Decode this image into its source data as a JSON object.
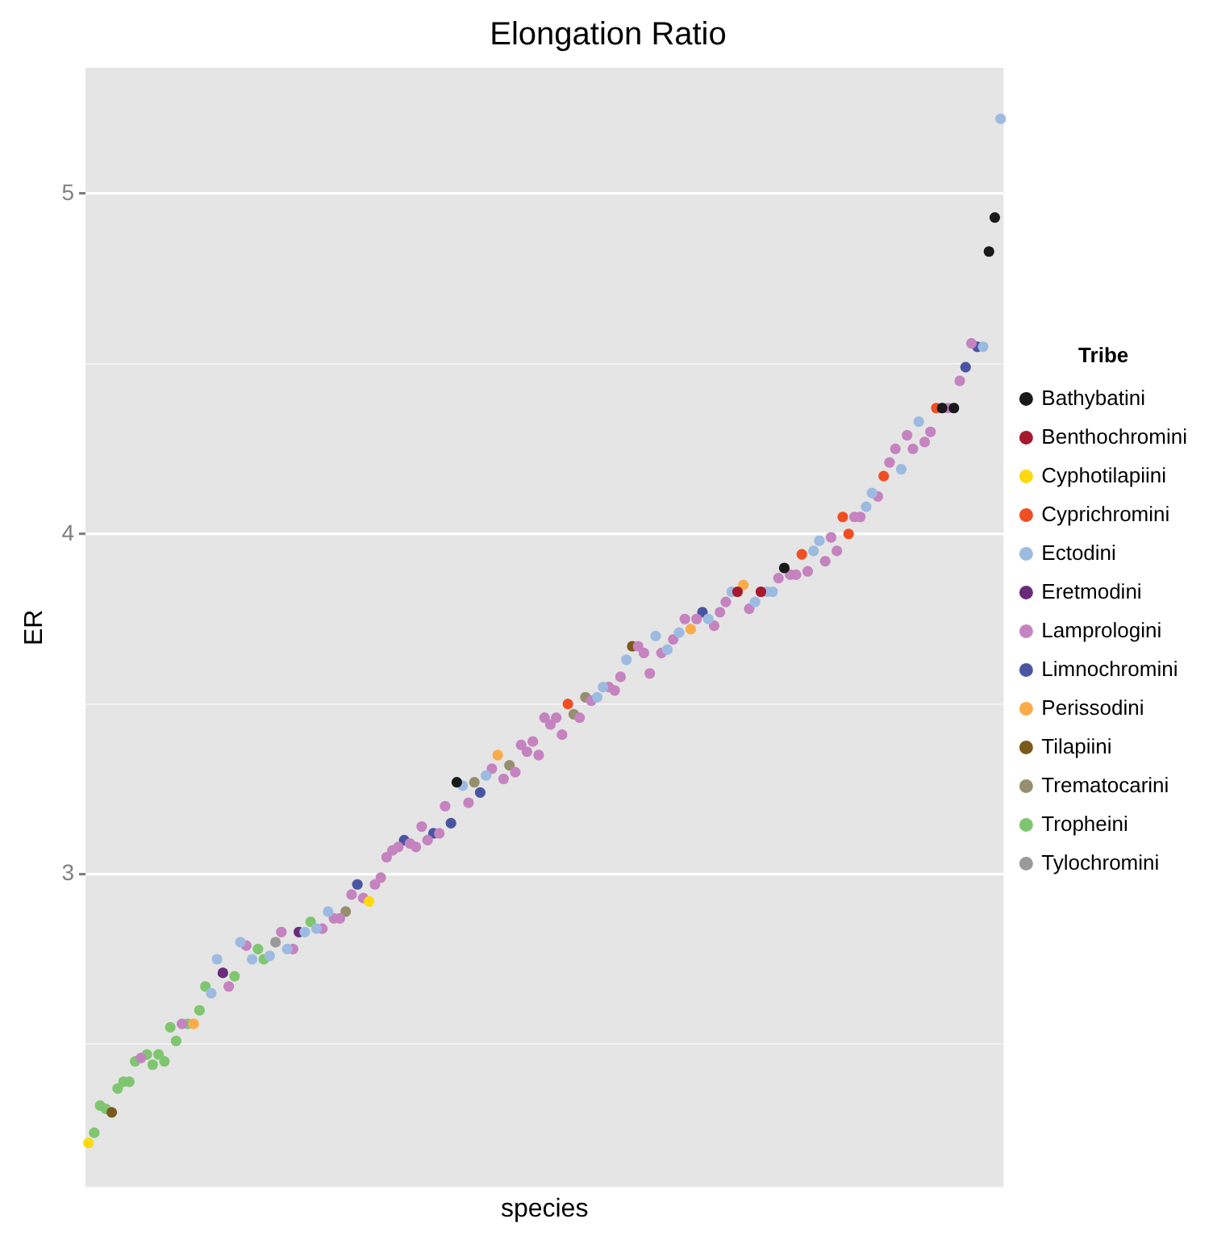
{
  "chart_data": {
    "type": "scatter",
    "title": "Elongation Ratio",
    "xlabel": "species",
    "ylabel": "ER",
    "legend_title": "Tribe",
    "legend": "right",
    "grid": true,
    "marker": "circle",
    "tick_labels": "y",
    "ylim": [
      2.08,
      5.37
    ],
    "yticks": [
      {
        "value": 2.5,
        "label": null
      },
      3,
      {
        "value": 3.5,
        "label": null
      },
      4,
      {
        "value": 4.5,
        "label": null
      },
      5
    ],
    "categories": [
      null,
      null,
      null,
      null,
      null,
      null,
      null,
      null,
      null,
      null,
      null,
      null,
      null,
      null,
      null,
      null,
      null,
      null,
      null,
      null,
      null,
      null,
      null,
      null,
      null,
      null,
      null,
      null,
      null,
      null,
      null,
      null,
      null,
      null,
      null,
      null,
      null,
      null,
      null,
      null,
      null,
      null,
      null,
      null,
      null,
      null,
      null,
      null,
      null,
      null,
      null,
      null,
      null,
      null,
      null,
      null,
      null,
      null,
      null,
      null,
      null,
      null,
      null,
      null,
      null,
      null,
      null,
      null,
      null,
      null,
      null,
      null,
      null,
      null,
      null,
      null,
      null,
      null,
      null,
      null,
      null,
      null,
      null,
      null,
      null,
      null,
      null,
      null,
      null,
      null,
      null,
      null,
      null,
      null,
      null,
      null,
      null,
      null,
      null,
      null,
      null,
      null,
      null,
      null,
      null,
      null,
      null,
      null,
      null,
      null,
      null,
      null,
      null,
      null,
      null,
      null,
      null,
      null,
      null,
      null,
      null,
      null,
      null,
      null,
      null,
      null,
      null,
      null,
      null,
      null,
      null,
      null,
      null,
      null,
      null,
      null,
      null,
      null,
      null,
      null,
      null,
      null,
      null,
      null,
      null,
      null,
      null,
      null,
      null,
      null,
      null,
      null,
      null,
      null,
      null,
      null,
      null
    ],
    "series": [
      {
        "name": "Bathybatini",
        "color": "#1a1a1a",
        "values": [
          null,
          null,
          null,
          null,
          null,
          null,
          null,
          null,
          null,
          null,
          null,
          null,
          null,
          null,
          null,
          null,
          null,
          null,
          null,
          null,
          null,
          null,
          null,
          null,
          null,
          null,
          null,
          null,
          null,
          null,
          null,
          null,
          null,
          null,
          null,
          null,
          null,
          null,
          null,
          null,
          null,
          null,
          null,
          null,
          null,
          null,
          null,
          null,
          null,
          null,
          null,
          null,
          null,
          null,
          null,
          null,
          null,
          null,
          null,
          null,
          null,
          null,
          null,
          3.27,
          null,
          null,
          null,
          null,
          null,
          null,
          null,
          null,
          null,
          null,
          null,
          null,
          null,
          null,
          null,
          null,
          null,
          null,
          null,
          null,
          null,
          null,
          null,
          null,
          null,
          null,
          null,
          null,
          null,
          null,
          null,
          null,
          null,
          null,
          null,
          null,
          null,
          null,
          null,
          null,
          null,
          null,
          null,
          null,
          null,
          null,
          null,
          null,
          null,
          null,
          null,
          null,
          null,
          null,
          null,
          3.9,
          null,
          null,
          null,
          null,
          null,
          null,
          null,
          null,
          null,
          null,
          null,
          null,
          null,
          null,
          null,
          null,
          null,
          null,
          null,
          null,
          null,
          null,
          null,
          null,
          null,
          null,
          4.37,
          null,
          4.37,
          null,
          null,
          null,
          null,
          null,
          4.83,
          4.93,
          null
        ]
      },
      {
        "name": "Benthochromini",
        "color": "#a6192e",
        "values": [
          null,
          null,
          null,
          null,
          null,
          null,
          null,
          null,
          null,
          null,
          null,
          null,
          null,
          null,
          null,
          null,
          null,
          null,
          null,
          null,
          null,
          null,
          null,
          null,
          null,
          null,
          null,
          null,
          null,
          null,
          null,
          null,
          null,
          null,
          null,
          null,
          null,
          null,
          null,
          null,
          null,
          null,
          null,
          null,
          null,
          null,
          null,
          null,
          null,
          null,
          null,
          null,
          null,
          null,
          null,
          null,
          null,
          null,
          null,
          null,
          null,
          null,
          null,
          null,
          null,
          null,
          null,
          null,
          null,
          null,
          null,
          null,
          null,
          null,
          null,
          null,
          null,
          null,
          null,
          null,
          null,
          null,
          null,
          null,
          null,
          null,
          null,
          null,
          null,
          null,
          null,
          null,
          null,
          null,
          null,
          null,
          null,
          null,
          null,
          null,
          null,
          null,
          null,
          null,
          null,
          null,
          null,
          null,
          null,
          null,
          null,
          3.83,
          null,
          null,
          null,
          3.83,
          null,
          null,
          null,
          null,
          null,
          null,
          null,
          null,
          null,
          null,
          null,
          null,
          null,
          null,
          null,
          null,
          null,
          null,
          null,
          null,
          null,
          null,
          null,
          null,
          null,
          null,
          null,
          null,
          null,
          null,
          null,
          null,
          null,
          null,
          null,
          null,
          null,
          null,
          null,
          null,
          null
        ]
      },
      {
        "name": "Cyphotilapiini",
        "color": "#fdd90e",
        "values": [
          2.21,
          null,
          null,
          null,
          null,
          null,
          null,
          null,
          null,
          null,
          null,
          null,
          null,
          null,
          null,
          null,
          null,
          null,
          null,
          null,
          null,
          null,
          null,
          null,
          null,
          null,
          null,
          null,
          null,
          null,
          null,
          null,
          null,
          null,
          null,
          null,
          null,
          null,
          null,
          null,
          null,
          null,
          null,
          null,
          null,
          null,
          null,
          null,
          2.92,
          null,
          null,
          null,
          null,
          null,
          null,
          null,
          null,
          null,
          null,
          null,
          null,
          null,
          null,
          null,
          null,
          null,
          null,
          null,
          null,
          null,
          null,
          null,
          null,
          null,
          null,
          null,
          null,
          null,
          null,
          null,
          null,
          null,
          null,
          null,
          null,
          null,
          null,
          null,
          null,
          null,
          null,
          null,
          null,
          null,
          null,
          null,
          null,
          null,
          null,
          null,
          null,
          null,
          null,
          null,
          null,
          null,
          null,
          null,
          null,
          null,
          null,
          null,
          null,
          null,
          null,
          null,
          null,
          null,
          null,
          null,
          null,
          null,
          null,
          null,
          null,
          null,
          null,
          null,
          null,
          null,
          null,
          null,
          null,
          null,
          null,
          null,
          null,
          null,
          null,
          null,
          null,
          null,
          null,
          null,
          null,
          null,
          null,
          null,
          null,
          null,
          null,
          null,
          null,
          null,
          null,
          null,
          null
        ]
      },
      {
        "name": "Cyprichromini",
        "color": "#f04e23",
        "values": [
          null,
          null,
          null,
          null,
          null,
          null,
          null,
          null,
          null,
          null,
          null,
          null,
          null,
          null,
          null,
          null,
          null,
          null,
          null,
          null,
          null,
          null,
          null,
          null,
          null,
          null,
          null,
          null,
          null,
          null,
          null,
          null,
          null,
          null,
          null,
          null,
          null,
          null,
          null,
          null,
          null,
          null,
          null,
          null,
          null,
          null,
          null,
          null,
          null,
          null,
          null,
          null,
          null,
          null,
          null,
          null,
          null,
          null,
          null,
          null,
          null,
          null,
          null,
          null,
          null,
          null,
          null,
          null,
          null,
          null,
          null,
          null,
          null,
          null,
          null,
          null,
          null,
          null,
          null,
          null,
          null,
          null,
          3.5,
          null,
          null,
          null,
          null,
          null,
          null,
          null,
          null,
          null,
          null,
          null,
          null,
          null,
          null,
          null,
          null,
          null,
          null,
          null,
          null,
          null,
          null,
          null,
          null,
          null,
          null,
          null,
          null,
          null,
          null,
          null,
          null,
          null,
          null,
          null,
          null,
          null,
          null,
          null,
          3.94,
          null,
          null,
          null,
          null,
          null,
          null,
          4.05,
          4.0,
          null,
          null,
          null,
          null,
          null,
          4.17,
          null,
          null,
          null,
          null,
          null,
          null,
          null,
          null,
          4.37,
          null,
          null,
          null,
          null,
          null,
          null,
          null,
          null,
          null,
          null,
          null
        ]
      },
      {
        "name": "Ectodini",
        "color": "#9dbbe0",
        "values": [
          null,
          null,
          null,
          null,
          null,
          null,
          null,
          null,
          null,
          null,
          null,
          null,
          null,
          null,
          null,
          null,
          null,
          null,
          null,
          null,
          null,
          2.65,
          2.75,
          null,
          null,
          null,
          2.8,
          null,
          2.75,
          null,
          null,
          2.76,
          null,
          null,
          2.78,
          null,
          null,
          2.83,
          null,
          2.84,
          null,
          2.89,
          null,
          null,
          null,
          null,
          null,
          null,
          null,
          null,
          null,
          null,
          null,
          null,
          null,
          null,
          null,
          null,
          null,
          null,
          null,
          null,
          null,
          null,
          3.26,
          null,
          null,
          null,
          3.29,
          null,
          null,
          null,
          null,
          null,
          null,
          null,
          null,
          null,
          null,
          null,
          null,
          null,
          null,
          null,
          null,
          null,
          null,
          3.52,
          3.55,
          null,
          null,
          null,
          3.63,
          null,
          null,
          null,
          null,
          3.7,
          null,
          3.66,
          null,
          3.71,
          null,
          null,
          null,
          null,
          3.75,
          null,
          null,
          null,
          3.83,
          null,
          null,
          null,
          3.8,
          null,
          3.83,
          3.83,
          null,
          null,
          null,
          null,
          null,
          null,
          3.95,
          3.98,
          null,
          null,
          null,
          null,
          null,
          null,
          null,
          4.08,
          4.12,
          null,
          null,
          null,
          null,
          4.19,
          null,
          null,
          4.33,
          null,
          null,
          null,
          null,
          null,
          null,
          null,
          null,
          null,
          null,
          4.55,
          null,
          null,
          5.22
        ]
      },
      {
        "name": "Eretmodini",
        "color": "#6a2c7a",
        "values": [
          null,
          null,
          null,
          null,
          null,
          null,
          null,
          null,
          null,
          null,
          null,
          null,
          null,
          null,
          null,
          null,
          null,
          null,
          null,
          null,
          null,
          null,
          null,
          2.71,
          null,
          null,
          null,
          null,
          null,
          null,
          null,
          null,
          null,
          null,
          null,
          null,
          2.83,
          null,
          null,
          null,
          null,
          null,
          null,
          null,
          null,
          null,
          null,
          null,
          null,
          null,
          null,
          null,
          null,
          null,
          null,
          null,
          null,
          null,
          null,
          null,
          null,
          null,
          null,
          null,
          null,
          null,
          null,
          null,
          null,
          null,
          null,
          null,
          null,
          null,
          null,
          null,
          null,
          null,
          null,
          null,
          null,
          null,
          null,
          null,
          null,
          null,
          null,
          null,
          null,
          null,
          null,
          null,
          null,
          null,
          null,
          null,
          null,
          null,
          null,
          null,
          null,
          null,
          null,
          null,
          null,
          null,
          null,
          null,
          null,
          null,
          null,
          null,
          null,
          null,
          null,
          null,
          null,
          null,
          null,
          null,
          null,
          null,
          null,
          null,
          null,
          null,
          null,
          null,
          null,
          null,
          null,
          null,
          null,
          null,
          null,
          null,
          null,
          null,
          null,
          null,
          null,
          null,
          null,
          null,
          null,
          null,
          null,
          null,
          null,
          null,
          null,
          null,
          null,
          null,
          null,
          null,
          null
        ]
      },
      {
        "name": "Lamprologini",
        "color": "#c583c0",
        "values": [
          null,
          null,
          null,
          null,
          null,
          null,
          null,
          null,
          null,
          2.46,
          null,
          null,
          null,
          null,
          null,
          null,
          2.56,
          null,
          null,
          null,
          null,
          null,
          null,
          null,
          2.67,
          null,
          null,
          2.79,
          null,
          null,
          null,
          null,
          null,
          2.83,
          null,
          2.78,
          null,
          null,
          null,
          null,
          2.84,
          null,
          2.87,
          2.87,
          null,
          2.94,
          null,
          2.93,
          null,
          2.97,
          2.99,
          3.05,
          3.07,
          3.08,
          null,
          3.09,
          3.08,
          3.14,
          3.1,
          null,
          3.12,
          3.2,
          null,
          null,
          null,
          3.21,
          null,
          null,
          null,
          3.31,
          null,
          3.28,
          null,
          3.3,
          3.38,
          3.36,
          3.39,
          3.35,
          3.46,
          3.44,
          3.46,
          3.41,
          null,
          null,
          3.46,
          null,
          3.51,
          null,
          null,
          3.55,
          3.54,
          3.58,
          null,
          null,
          3.67,
          3.65,
          3.59,
          null,
          3.65,
          null,
          3.69,
          null,
          3.75,
          null,
          3.75,
          null,
          null,
          3.73,
          3.77,
          3.8,
          null,
          null,
          null,
          3.78,
          null,
          null,
          null,
          null,
          3.87,
          null,
          3.88,
          3.88,
          null,
          3.89,
          null,
          null,
          3.92,
          3.99,
          3.95,
          null,
          null,
          4.05,
          4.05,
          null,
          null,
          4.11,
          null,
          4.21,
          4.25,
          null,
          4.29,
          4.25,
          null,
          4.27,
          4.3,
          null,
          null,
          4.37,
          null,
          4.45,
          null,
          4.56,
          null,
          null,
          null,
          null,
          null
        ]
      },
      {
        "name": "Limnochromini",
        "color": "#4a55a2",
        "values": [
          null,
          null,
          null,
          null,
          null,
          null,
          null,
          null,
          null,
          null,
          null,
          null,
          null,
          null,
          null,
          null,
          null,
          null,
          null,
          null,
          null,
          null,
          null,
          null,
          null,
          null,
          null,
          null,
          null,
          null,
          null,
          null,
          null,
          null,
          null,
          null,
          null,
          null,
          null,
          null,
          null,
          null,
          null,
          null,
          null,
          null,
          2.97,
          null,
          null,
          null,
          null,
          null,
          null,
          null,
          3.1,
          null,
          null,
          null,
          null,
          3.12,
          null,
          null,
          3.15,
          null,
          null,
          null,
          null,
          3.24,
          null,
          null,
          null,
          null,
          null,
          null,
          null,
          null,
          null,
          null,
          null,
          null,
          null,
          null,
          null,
          null,
          null,
          null,
          null,
          null,
          null,
          null,
          null,
          null,
          null,
          null,
          null,
          null,
          null,
          null,
          null,
          null,
          null,
          null,
          null,
          null,
          null,
          3.77,
          null,
          null,
          null,
          null,
          null,
          null,
          null,
          null,
          null,
          null,
          null,
          null,
          null,
          null,
          null,
          null,
          null,
          null,
          null,
          null,
          null,
          null,
          null,
          null,
          null,
          null,
          null,
          null,
          null,
          null,
          null,
          null,
          null,
          null,
          null,
          null,
          null,
          null,
          null,
          null,
          null,
          null,
          null,
          null,
          4.49,
          null,
          4.55,
          null,
          null,
          null,
          null
        ]
      },
      {
        "name": "Perissodini",
        "color": "#fbab4a",
        "values": [
          null,
          null,
          null,
          null,
          null,
          null,
          null,
          null,
          null,
          null,
          null,
          null,
          null,
          null,
          null,
          null,
          null,
          null,
          2.56,
          null,
          null,
          null,
          null,
          null,
          null,
          null,
          null,
          null,
          null,
          null,
          null,
          null,
          null,
          null,
          null,
          null,
          null,
          null,
          null,
          null,
          null,
          null,
          null,
          null,
          null,
          null,
          null,
          null,
          null,
          null,
          null,
          null,
          null,
          null,
          null,
          null,
          null,
          null,
          null,
          null,
          null,
          null,
          null,
          null,
          null,
          null,
          null,
          null,
          null,
          null,
          3.35,
          null,
          null,
          null,
          null,
          null,
          null,
          null,
          null,
          null,
          null,
          null,
          null,
          null,
          null,
          null,
          null,
          null,
          null,
          null,
          null,
          null,
          null,
          null,
          null,
          null,
          null,
          null,
          null,
          null,
          null,
          null,
          null,
          3.72,
          null,
          null,
          null,
          null,
          null,
          null,
          null,
          null,
          3.85,
          null,
          null,
          null,
          null,
          null,
          null,
          null,
          null,
          null,
          null,
          null,
          null,
          null,
          null,
          null,
          null,
          null,
          null,
          null,
          null,
          null,
          null,
          null,
          null,
          null,
          null,
          null,
          null,
          null,
          null,
          null,
          null,
          null,
          null,
          null,
          null,
          null,
          null,
          null,
          null,
          null,
          null,
          null,
          null
        ]
      },
      {
        "name": "Tilapiini",
        "color": "#7a5a1d",
        "values": [
          null,
          null,
          null,
          null,
          2.3,
          null,
          null,
          null,
          null,
          null,
          null,
          null,
          null,
          null,
          null,
          null,
          null,
          null,
          null,
          null,
          null,
          null,
          null,
          null,
          null,
          null,
          null,
          null,
          null,
          null,
          null,
          null,
          null,
          null,
          null,
          null,
          null,
          null,
          null,
          null,
          null,
          null,
          null,
          null,
          null,
          null,
          null,
          null,
          null,
          null,
          null,
          null,
          null,
          null,
          null,
          null,
          null,
          null,
          null,
          null,
          null,
          null,
          null,
          null,
          null,
          null,
          null,
          null,
          null,
          null,
          null,
          null,
          null,
          null,
          null,
          null,
          null,
          null,
          null,
          null,
          null,
          null,
          null,
          null,
          null,
          null,
          null,
          null,
          null,
          null,
          null,
          null,
          null,
          3.67,
          null,
          null,
          null,
          null,
          null,
          null,
          null,
          null,
          null,
          null,
          null,
          null,
          null,
          null,
          null,
          null,
          null,
          null,
          null,
          null,
          null,
          null,
          null,
          null,
          null,
          null,
          null,
          null,
          null,
          null,
          null,
          null,
          null,
          null,
          null,
          null,
          null,
          null,
          null,
          null,
          null,
          null,
          null,
          null,
          null,
          null,
          null,
          null,
          null,
          null,
          null,
          null,
          null,
          null,
          null,
          null,
          null,
          null,
          null,
          null,
          null,
          null,
          null
        ]
      },
      {
        "name": "Trematocarini",
        "color": "#958f70",
        "values": [
          null,
          null,
          null,
          null,
          null,
          null,
          null,
          null,
          null,
          null,
          null,
          null,
          null,
          null,
          null,
          null,
          null,
          null,
          null,
          null,
          null,
          null,
          null,
          null,
          null,
          null,
          null,
          null,
          null,
          null,
          null,
          null,
          null,
          null,
          null,
          null,
          null,
          null,
          null,
          null,
          null,
          null,
          null,
          null,
          2.89,
          null,
          null,
          null,
          null,
          null,
          null,
          null,
          null,
          null,
          null,
          null,
          null,
          null,
          null,
          null,
          null,
          null,
          null,
          null,
          null,
          null,
          3.27,
          null,
          null,
          null,
          null,
          null,
          3.32,
          null,
          null,
          null,
          null,
          null,
          null,
          null,
          null,
          null,
          null,
          3.47,
          null,
          3.52,
          null,
          null,
          null,
          null,
          null,
          null,
          null,
          null,
          null,
          null,
          null,
          null,
          null,
          null,
          null,
          null,
          null,
          null,
          null,
          null,
          null,
          null,
          null,
          null,
          null,
          null,
          null,
          null,
          null,
          null,
          null,
          null,
          null,
          null,
          null,
          null,
          null,
          null,
          null,
          null,
          null,
          null,
          null,
          null,
          null,
          null,
          null,
          null,
          null,
          null,
          null,
          null,
          null,
          null,
          null,
          null,
          null,
          null,
          null,
          null,
          null,
          null,
          null,
          null,
          null,
          null,
          null,
          null,
          null,
          null,
          null
        ]
      },
      {
        "name": "Tropheini",
        "color": "#80c670",
        "values": [
          null,
          2.24,
          2.32,
          2.31,
          null,
          2.37,
          2.39,
          2.39,
          2.45,
          null,
          2.47,
          2.44,
          2.47,
          2.45,
          2.55,
          2.51,
          null,
          2.56,
          null,
          2.6,
          2.67,
          null,
          null,
          null,
          null,
          2.7,
          null,
          null,
          null,
          2.78,
          2.75,
          null,
          null,
          null,
          null,
          null,
          null,
          null,
          2.86,
          null,
          null,
          null,
          null,
          null,
          null,
          null,
          null,
          null,
          null,
          null,
          null,
          null,
          null,
          null,
          null,
          null,
          null,
          null,
          null,
          null,
          null,
          null,
          null,
          null,
          null,
          null,
          null,
          null,
          null,
          null,
          null,
          null,
          null,
          null,
          null,
          null,
          null,
          null,
          null,
          null,
          null,
          null,
          null,
          null,
          null,
          null,
          null,
          null,
          null,
          null,
          null,
          null,
          null,
          null,
          null,
          null,
          null,
          null,
          null,
          null,
          null,
          null,
          null,
          null,
          null,
          null,
          null,
          null,
          null,
          null,
          null,
          null,
          null,
          null,
          null,
          null,
          null,
          null,
          null,
          null,
          null,
          null,
          null,
          null,
          null,
          null,
          null,
          null,
          null,
          null,
          null,
          null,
          null,
          null,
          null,
          null,
          null,
          null,
          null,
          null,
          null,
          null,
          null,
          null,
          null,
          null,
          null,
          null,
          null,
          null,
          null,
          null,
          null,
          null,
          null,
          null,
          null
        ]
      },
      {
        "name": "Tylochromini",
        "color": "#9a9a9a",
        "values": [
          null,
          null,
          null,
          null,
          null,
          null,
          null,
          null,
          null,
          null,
          null,
          null,
          null,
          null,
          null,
          null,
          null,
          null,
          null,
          null,
          null,
          null,
          null,
          null,
          null,
          null,
          null,
          null,
          null,
          null,
          null,
          null,
          2.8,
          null,
          null,
          null,
          null,
          null,
          null,
          null,
          null,
          null,
          null,
          null,
          null,
          null,
          null,
          null,
          null,
          null,
          null,
          null,
          null,
          null,
          null,
          null,
          null,
          null,
          null,
          null,
          null,
          null,
          null,
          null,
          null,
          null,
          null,
          null,
          null,
          null,
          null,
          null,
          null,
          null,
          null,
          null,
          null,
          null,
          null,
          null,
          null,
          null,
          null,
          null,
          null,
          null,
          null,
          null,
          null,
          null,
          null,
          null,
          null,
          null,
          null,
          null,
          null,
          null,
          null,
          null,
          null,
          null,
          null,
          null,
          null,
          null,
          null,
          null,
          null,
          null,
          null,
          null,
          null,
          null,
          null,
          null,
          null,
          null,
          null,
          null,
          null,
          null,
          null,
          null,
          null,
          null,
          null,
          null,
          null,
          null,
          null,
          null,
          null,
          null,
          null,
          null,
          null,
          null,
          null,
          null,
          null,
          null,
          null,
          null,
          null,
          null,
          null,
          null,
          null,
          null,
          null,
          null,
          null,
          null,
          null,
          null,
          null
        ]
      }
    ]
  }
}
